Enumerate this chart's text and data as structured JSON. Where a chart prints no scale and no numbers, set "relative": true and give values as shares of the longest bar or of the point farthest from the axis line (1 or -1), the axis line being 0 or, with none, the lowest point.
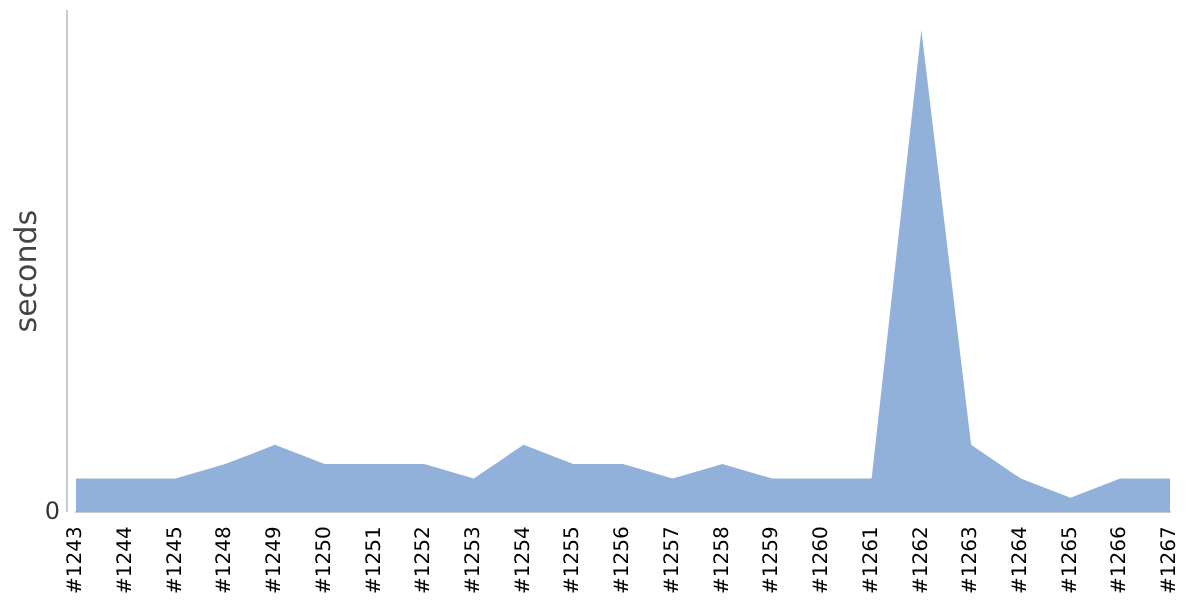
{
  "chart_data": {
    "type": "area",
    "ylabel": "seconds",
    "relative": true,
    "grid": false,
    "legend": false,
    "categories": [
      "#1243",
      "#1244",
      "#1245",
      "#1248",
      "#1249",
      "#1250",
      "#1251",
      "#1252",
      "#1253",
      "#1254",
      "#1255",
      "#1256",
      "#1257",
      "#1258",
      "#1259",
      "#1260",
      "#1261",
      "#1262",
      "#1263",
      "#1264",
      "#1265",
      "#1266",
      "#1267"
    ],
    "series": [
      {
        "color": "#91b1db",
        "values": [
          0.07,
          0.07,
          0.07,
          0.1,
          0.14,
          0.1,
          0.1,
          0.1,
          0.07,
          0.14,
          0.1,
          0.1,
          0.07,
          0.1,
          0.07,
          0.07,
          0.07,
          1,
          0.14,
          0.07,
          0.03,
          0.07,
          0.07
        ]
      }
    ],
    "annotations": [
      "0"
    ]
  }
}
